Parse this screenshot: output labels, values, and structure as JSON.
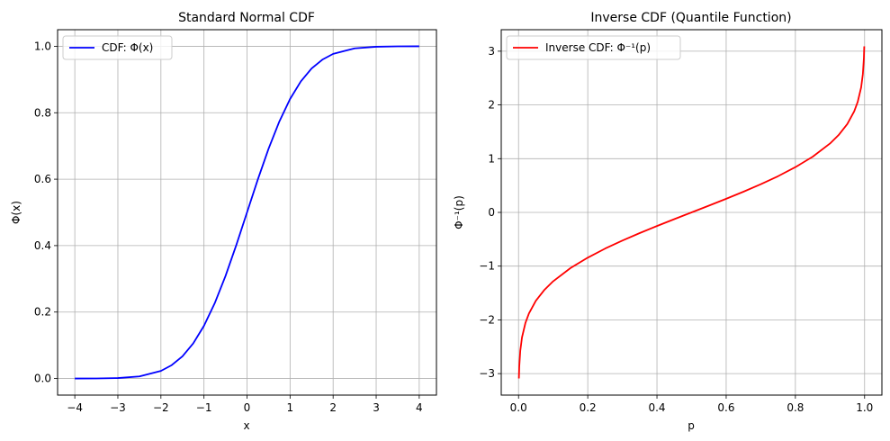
{
  "figure": {
    "background": "#ffffff",
    "grid_color": "#b0b0b0"
  },
  "chart_data": [
    {
      "type": "line",
      "title": "Standard Normal CDF",
      "xlabel": "x",
      "ylabel": "Φ(x)",
      "xlim": [
        -4.4,
        4.4
      ],
      "ylim": [
        -0.05,
        1.05
      ],
      "xticks": [
        -4,
        -3,
        -2,
        -1,
        0,
        1,
        2,
        3,
        4
      ],
      "xtick_labels": [
        "−4",
        "−3",
        "−2",
        "−1",
        "0",
        "1",
        "2",
        "3",
        "4"
      ],
      "yticks": [
        0.0,
        0.2,
        0.4,
        0.6,
        0.8,
        1.0
      ],
      "ytick_labels": [
        "0.0",
        "0.2",
        "0.4",
        "0.6",
        "0.8",
        "1.0"
      ],
      "grid": true,
      "legend": {
        "placement": "upper-left"
      },
      "series": [
        {
          "name": "CDF: Φ(x)",
          "color": "#0000ff",
          "x": [
            -4.0,
            -3.5,
            -3.0,
            -2.5,
            -2.0,
            -1.75,
            -1.5,
            -1.25,
            -1.0,
            -0.75,
            -0.5,
            -0.25,
            0.0,
            0.25,
            0.5,
            0.75,
            1.0,
            1.25,
            1.5,
            1.75,
            2.0,
            2.5,
            3.0,
            3.5,
            4.0
          ],
          "y": [
            0.0,
            0.0002,
            0.0013,
            0.0062,
            0.0228,
            0.0401,
            0.0668,
            0.1056,
            0.1587,
            0.2266,
            0.3085,
            0.4013,
            0.5,
            0.5987,
            0.6915,
            0.7734,
            0.8413,
            0.8944,
            0.9332,
            0.9599,
            0.9772,
            0.9938,
            0.9987,
            0.9998,
            1.0
          ]
        }
      ]
    },
    {
      "type": "line",
      "title": "Inverse CDF (Quantile Function)",
      "xlabel": "p",
      "ylabel": "Φ⁻¹(p)",
      "xlim": [
        -0.05,
        1.05
      ],
      "ylim": [
        -3.4,
        3.4
      ],
      "xticks": [
        0.0,
        0.2,
        0.4,
        0.6,
        0.8,
        1.0
      ],
      "xtick_labels": [
        "0.0",
        "0.2",
        "0.4",
        "0.6",
        "0.8",
        "1.0"
      ],
      "yticks": [
        -3,
        -2,
        -1,
        0,
        1,
        2,
        3
      ],
      "ytick_labels": [
        "−3",
        "−2",
        "−1",
        "0",
        "1",
        "2",
        "3"
      ],
      "grid": true,
      "legend": {
        "placement": "upper-left"
      },
      "series": [
        {
          "name": "Inverse CDF: Φ⁻¹(p)",
          "color": "#ff0000",
          "x": [
            0.001,
            0.002,
            0.005,
            0.01,
            0.02,
            0.03,
            0.05,
            0.075,
            0.1,
            0.15,
            0.2,
            0.25,
            0.3,
            0.35,
            0.4,
            0.45,
            0.5,
            0.55,
            0.6,
            0.65,
            0.7,
            0.75,
            0.8,
            0.85,
            0.9,
            0.925,
            0.95,
            0.97,
            0.98,
            0.99,
            0.995,
            0.998,
            0.999
          ],
          "y": [
            -3.09,
            -2.878,
            -2.576,
            -2.326,
            -2.054,
            -1.881,
            -1.645,
            -1.44,
            -1.282,
            -1.036,
            -0.842,
            -0.674,
            -0.524,
            -0.385,
            -0.253,
            -0.126,
            0.0,
            0.126,
            0.253,
            0.385,
            0.524,
            0.674,
            0.842,
            1.036,
            1.282,
            1.44,
            1.645,
            1.881,
            2.054,
            2.326,
            2.576,
            2.878,
            3.09
          ]
        }
      ]
    }
  ]
}
